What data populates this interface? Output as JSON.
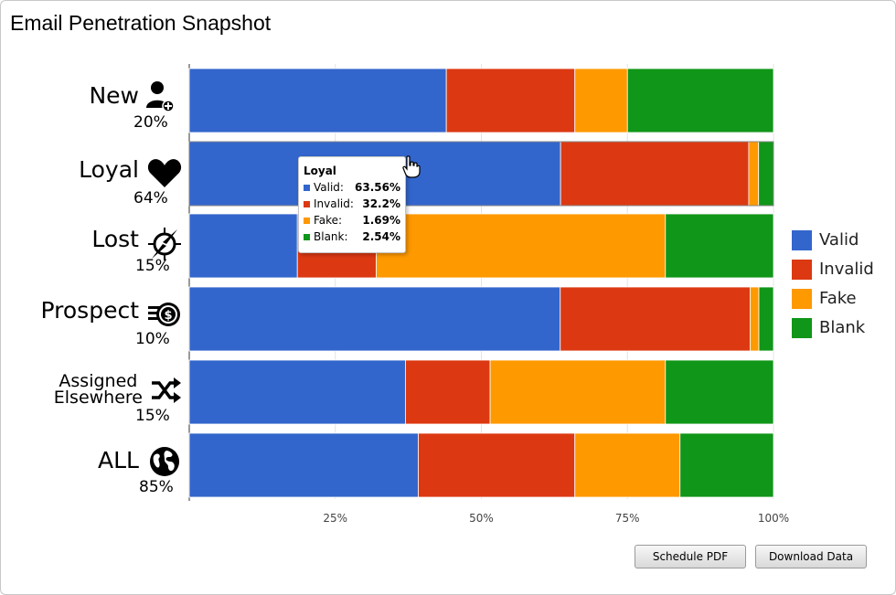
{
  "title": "Email Penetration Snapshot",
  "chart_data": {
    "type": "bar",
    "orientation": "horizontal",
    "stacked": "percent",
    "categories": [
      "New",
      "Loyal",
      "Lost",
      "Prospect",
      "Assigned Elsewhere",
      "ALL"
    ],
    "category_percent": [
      "20%",
      "64%",
      "15%",
      "10%",
      "15%",
      "85%"
    ],
    "series": [
      {
        "name": "Valid",
        "color": "#3366cc",
        "values": [
          44.0,
          63.56,
          18.5,
          63.5,
          37.0,
          39.2
        ]
      },
      {
        "name": "Invalid",
        "color": "#dc3912",
        "values": [
          22.0,
          32.2,
          13.5,
          32.5,
          14.5,
          26.8
        ]
      },
      {
        "name": "Fake",
        "color": "#ff9900",
        "values": [
          9.0,
          1.69,
          49.5,
          1.5,
          30.0,
          18.0
        ]
      },
      {
        "name": "Blank",
        "color": "#109618",
        "values": [
          25.0,
          2.54,
          18.5,
          2.5,
          18.5,
          16.0
        ]
      }
    ],
    "x_ticks": [
      "25%",
      "50%",
      "75%",
      "100%"
    ],
    "xlim": [
      0,
      100
    ],
    "legend": "right",
    "grid": true
  },
  "rows": [
    {
      "name": "New",
      "pct": "20%",
      "icon": "user-add-icon"
    },
    {
      "name": "Loyal",
      "pct": "64%",
      "icon": "heart-icon"
    },
    {
      "name": "Lost",
      "pct": "15%",
      "icon": "compass-icon"
    },
    {
      "name": "Prospect",
      "pct": "10%",
      "icon": "money-icon"
    },
    {
      "name_line1": "Assigned",
      "name_line2": "Elsewhere",
      "pct": "15%",
      "icon": "shuffle-icon"
    },
    {
      "name": "ALL",
      "pct": "85%",
      "icon": "globe-icon"
    }
  ],
  "legend": [
    {
      "label": "Valid",
      "color": "#3366cc"
    },
    {
      "label": "Invalid",
      "color": "#dc3912"
    },
    {
      "label": "Fake",
      "color": "#ff9900"
    },
    {
      "label": "Blank",
      "color": "#109618"
    }
  ],
  "tooltip": {
    "title": "Loyal",
    "rows": [
      {
        "label": "Valid:",
        "value": "63.56%",
        "color": "#3366cc"
      },
      {
        "label": "Invalid:",
        "value": "32.2%",
        "color": "#dc3912"
      },
      {
        "label": "Fake:",
        "value": "1.69%",
        "color": "#ff9900"
      },
      {
        "label": "Blank:",
        "value": "2.54%",
        "color": "#109618"
      }
    ]
  },
  "buttons": {
    "schedule_pdf": "Schedule PDF",
    "download_data": "Download Data"
  }
}
